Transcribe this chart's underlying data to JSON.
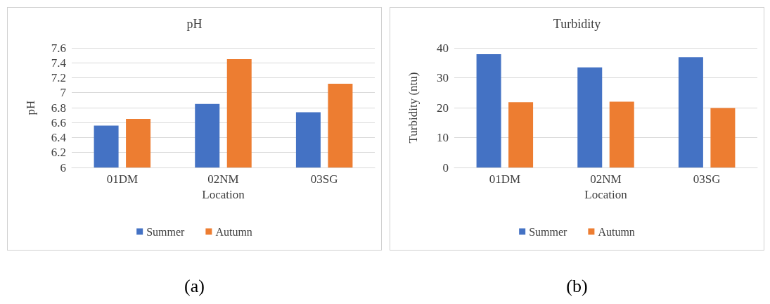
{
  "chart_data": [
    {
      "type": "bar",
      "title": "pH",
      "xlabel": "Location",
      "ylabel": "pH",
      "categories": [
        "01DM",
        "02NM",
        "03SG"
      ],
      "series": [
        {
          "name": "Summer",
          "color": "#4472c4",
          "values": [
            6.56,
            6.85,
            6.74
          ]
        },
        {
          "name": "Autumn",
          "color": "#ed7d31",
          "values": [
            6.65,
            7.45,
            7.12
          ]
        }
      ],
      "ylim": [
        6,
        7.6
      ],
      "yticks": [
        6,
        6.2,
        6.4,
        6.6,
        6.8,
        7,
        7.2,
        7.4,
        7.6
      ],
      "grid": "y",
      "legend": "bottom",
      "annotations": [
        "(a)"
      ]
    },
    {
      "type": "bar",
      "title": "Turbidity",
      "xlabel": "Location",
      "ylabel": "Turbidity (ntu)",
      "categories": [
        "01DM",
        "02NM",
        "03SG"
      ],
      "series": [
        {
          "name": "Summer",
          "color": "#4472c4",
          "values": [
            37.9,
            33.5,
            36.9
          ]
        },
        {
          "name": "Autumn",
          "color": "#ed7d31",
          "values": [
            21.8,
            22.0,
            19.9
          ]
        }
      ],
      "ylim": [
        0,
        40
      ],
      "yticks": [
        0,
        10,
        20,
        30,
        40
      ],
      "grid": "y",
      "legend": "bottom",
      "annotations": [
        "(b)"
      ]
    }
  ]
}
